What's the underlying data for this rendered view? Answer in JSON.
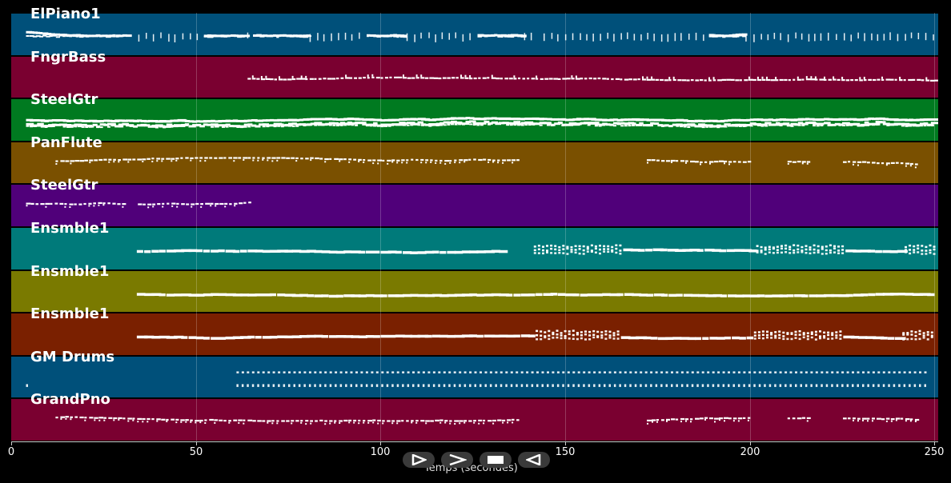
{
  "tracks": [
    {
      "name": "ElPiano1",
      "color": "#00507a",
      "pattern": "mixed",
      "start": 4,
      "end": 250,
      "gaps": [
        [
          31,
          34
        ],
        [
          141,
          144
        ]
      ]
    },
    {
      "name": "FngrBass",
      "color": "#7a0030",
      "pattern": "line",
      "start": 64,
      "end": 250,
      "gaps": []
    },
    {
      "name": "SteelGtr",
      "color": "#007a20",
      "pattern": "dense",
      "start": 4,
      "end": 250,
      "gaps": []
    },
    {
      "name": "PanFlute",
      "color": "#7a5000",
      "pattern": "sparse",
      "start": 12,
      "end": 246,
      "gaps": [
        [
          138,
          172
        ],
        [
          200,
          210
        ],
        [
          216,
          225
        ]
      ]
    },
    {
      "name": "SteelGtr",
      "color": "#50007a",
      "pattern": "sparse",
      "start": 4,
      "end": 65,
      "gaps": [
        [
          31,
          34
        ]
      ]
    },
    {
      "name": "Ensmble1",
      "color": "#007a7a",
      "pattern": "melody",
      "start": 34,
      "end": 250,
      "gaps": [
        [
          134,
          141
        ]
      ]
    },
    {
      "name": "Ensmble1",
      "color": "#7a7a00",
      "pattern": "melody",
      "start": 34,
      "end": 250,
      "gaps": []
    },
    {
      "name": "Ensmble1",
      "color": "#7a2000",
      "pattern": "melody",
      "start": 34,
      "end": 250,
      "gaps": []
    },
    {
      "name": "GM Drums",
      "color": "#00507a",
      "pattern": "drums",
      "start": 61,
      "end": 248,
      "gaps": []
    },
    {
      "name": "GrandPno",
      "color": "#7a0030",
      "pattern": "sparse",
      "start": 12,
      "end": 246,
      "gaps": [
        [
          138,
          172
        ],
        [
          200,
          210
        ],
        [
          216,
          225
        ]
      ]
    }
  ],
  "axis": {
    "label": "Temps (secondes)",
    "min": 0,
    "max": 251,
    "ticks": [
      0,
      50,
      100,
      150,
      200,
      250
    ]
  },
  "controls": [
    {
      "name": "play-button",
      "icon": "play-icon"
    },
    {
      "name": "forward-button",
      "icon": "forward-icon"
    },
    {
      "name": "stop-button",
      "icon": "stop-icon"
    },
    {
      "name": "rewind-button",
      "icon": "rewind-icon"
    }
  ]
}
